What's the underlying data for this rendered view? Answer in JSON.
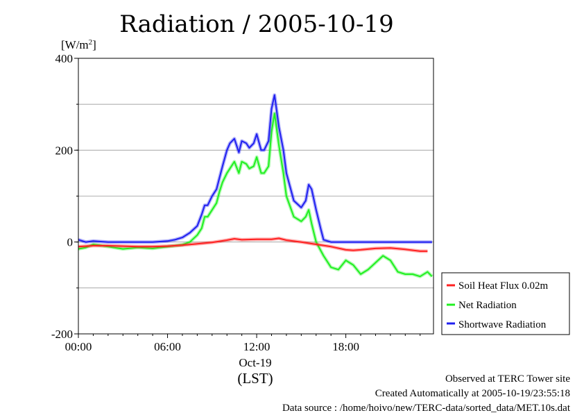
{
  "chart_data": {
    "type": "line",
    "title": "Radiation / 2005-10-19",
    "ylabel": "[W/m2]",
    "xlabel": "(LST)",
    "date_label": "Oct-19",
    "ylim": [
      -200,
      400
    ],
    "xlim": [
      0,
      23.9
    ],
    "x_ticks": [
      {
        "x": 0,
        "label": "00:00"
      },
      {
        "x": 6,
        "label": "06:00"
      },
      {
        "x": 12,
        "label": "12:00"
      },
      {
        "x": 18,
        "label": "18:00"
      }
    ],
    "y_ticks": [
      {
        "y": -200,
        "label": "-200"
      },
      {
        "y": 0,
        "label": "0"
      },
      {
        "y": 200,
        "label": "200"
      },
      {
        "y": 400,
        "label": "400"
      }
    ],
    "grid": true,
    "legend_position": "bottom-right",
    "series": [
      {
        "name": "Soil Heat Flux 0.02m",
        "color": "#ff2020",
        "x": [
          0,
          1,
          2,
          3,
          4,
          5,
          6,
          7,
          8,
          9,
          10,
          10.5,
          11,
          12,
          13,
          13.5,
          14,
          15,
          16,
          17,
          18,
          18.5,
          19,
          20,
          21,
          22,
          23,
          23.5
        ],
        "y": [
          -10,
          -8,
          -8,
          -9,
          -10,
          -10,
          -9,
          -7,
          -4,
          -1,
          4,
          7,
          5,
          6,
          6,
          8,
          4,
          0,
          -5,
          -10,
          -17,
          -18,
          -17,
          -14,
          -13,
          -16,
          -20,
          -20
        ]
      },
      {
        "name": "Net Radiation",
        "color": "#20f020",
        "x": [
          0,
          0.5,
          1,
          2,
          3,
          4,
          5,
          6,
          6.5,
          7,
          7.5,
          8,
          8.3,
          8.5,
          8.7,
          9,
          9.3,
          9.5,
          9.7,
          10,
          10.2,
          10.5,
          10.8,
          11,
          11.3,
          11.5,
          11.8,
          12,
          12.3,
          12.5,
          12.8,
          13,
          13.2,
          13.5,
          13.8,
          14,
          14.5,
          15,
          15.3,
          15.5,
          15.7,
          16,
          16.5,
          17,
          17.5,
          18,
          18.5,
          19,
          19.5,
          20,
          20.5,
          21,
          21.5,
          22,
          22.5,
          23,
          23.5,
          23.8
        ],
        "y": [
          -15,
          -12,
          -5,
          -10,
          -15,
          -12,
          -14,
          -10,
          -8,
          -6,
          0,
          15,
          30,
          55,
          55,
          70,
          85,
          110,
          130,
          150,
          160,
          175,
          150,
          175,
          170,
          160,
          165,
          185,
          150,
          150,
          165,
          240,
          280,
          210,
          150,
          100,
          55,
          45,
          55,
          70,
          40,
          0,
          -30,
          -55,
          -60,
          -40,
          -50,
          -70,
          -60,
          -45,
          -30,
          -40,
          -65,
          -70,
          -70,
          -75,
          -65,
          -75
        ]
      },
      {
        "name": "Shortwave Radiation",
        "color": "#2020f0",
        "x": [
          0,
          0.5,
          1,
          2,
          3,
          4,
          5,
          6,
          6.5,
          7,
          7.5,
          8,
          8.3,
          8.5,
          8.7,
          9,
          9.3,
          9.5,
          9.7,
          10,
          10.2,
          10.5,
          10.8,
          11,
          11.3,
          11.5,
          11.8,
          12,
          12.3,
          12.5,
          12.8,
          13,
          13.2,
          13.5,
          13.8,
          14,
          14.5,
          15,
          15.3,
          15.5,
          15.7,
          16,
          16.3,
          16.5,
          17,
          18,
          19,
          20,
          21,
          22,
          23,
          23.8
        ],
        "y": [
          5,
          0,
          2,
          0,
          0,
          0,
          0,
          2,
          5,
          10,
          20,
          35,
          60,
          80,
          80,
          100,
          115,
          140,
          165,
          200,
          215,
          225,
          195,
          220,
          215,
          205,
          215,
          235,
          200,
          200,
          220,
          290,
          320,
          250,
          200,
          150,
          90,
          75,
          90,
          125,
          115,
          70,
          30,
          5,
          0,
          0,
          0,
          0,
          0,
          0,
          0,
          0
        ]
      }
    ]
  },
  "footer": {
    "line1": "Observed at TERC Tower site",
    "line2": "Created Automatically at 2005-10-19/23:55:18",
    "line3": "Data source : /home/hoivo/new/TERC-data/sorted_data/MET.10s.dat"
  }
}
